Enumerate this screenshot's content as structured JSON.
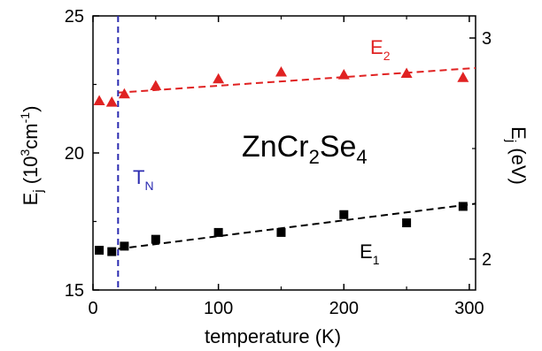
{
  "chart_data": {
    "type": "scatter",
    "xlabel": "temperature (K)",
    "ylabel": {
      "main": "E",
      "sub": "j",
      "pre": " (10",
      "sup": "3",
      "unit": "cm",
      "supneg": "-1",
      "post": ")"
    },
    "ylabel_right": {
      "main": "E",
      "sub": "j",
      "post": " (eV)"
    },
    "xlim": [
      0,
      305
    ],
    "ylim": [
      15,
      25
    ],
    "ylim_right_eV": [
      1.86,
      3.1
    ],
    "x_ticks": [
      0,
      100,
      200,
      300
    ],
    "y_ticks": [
      15,
      20,
      25
    ],
    "y_right_ticks": [
      2,
      3
    ],
    "grid": false,
    "vline": {
      "x": 20,
      "color": "#2b2bb0",
      "label": {
        "main": "T",
        "sub": "N"
      }
    },
    "compound_label": {
      "a": "ZnCr",
      "sub1": "2",
      "b": "Se",
      "sub2": "4"
    },
    "series": [
      {
        "name": {
          "main": "E",
          "sub": "2"
        },
        "marker": "triangle",
        "color": "#e02222",
        "x": [
          5,
          15,
          25,
          50,
          100,
          150,
          200,
          250,
          295
        ],
        "y": [
          21.9,
          21.85,
          22.15,
          22.45,
          22.7,
          22.95,
          22.85,
          22.9,
          22.75
        ],
        "fit": {
          "x": [
            20,
            305
          ],
          "y": [
            22.2,
            23.1
          ]
        }
      },
      {
        "name": {
          "main": "E",
          "sub": "1"
        },
        "marker": "square",
        "color": "#000000",
        "x": [
          5,
          15,
          25,
          50,
          100,
          150,
          200,
          250,
          295
        ],
        "y": [
          16.45,
          16.4,
          16.6,
          16.85,
          17.1,
          17.1,
          17.75,
          17.45,
          18.05
        ],
        "fit": {
          "x": [
            20,
            305
          ],
          "y": [
            16.5,
            18.15
          ]
        }
      }
    ]
  }
}
